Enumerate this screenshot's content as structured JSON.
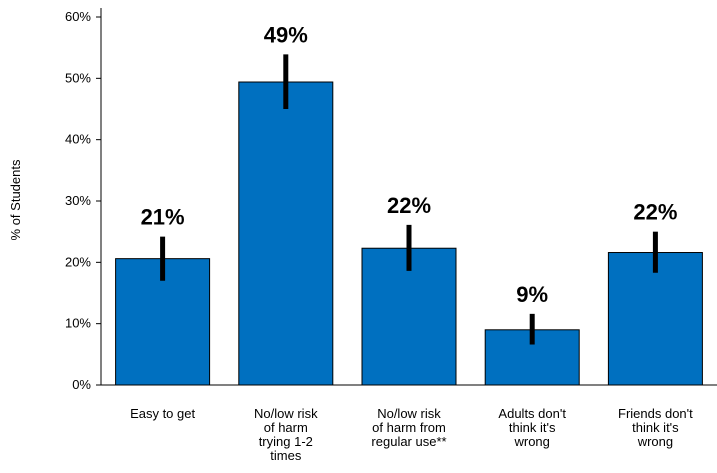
{
  "chart_data": {
    "type": "bar",
    "title": "",
    "xlabel": "",
    "ylabel": "% of Students",
    "ylim": [
      0,
      60
    ],
    "y_ticks": [
      "0%",
      "10%",
      "20%",
      "30%",
      "40%",
      "50%",
      "60%"
    ],
    "grid": false,
    "categories": [
      [
        "Easy to get"
      ],
      [
        "No/low risk",
        "of harm",
        "trying 1-2",
        "times"
      ],
      [
        "No/low risk",
        "of harm from",
        "regular use**"
      ],
      [
        "Adults don't",
        "think it's",
        "wrong"
      ],
      [
        "Friends don't",
        "think it's",
        "wrong"
      ]
    ],
    "values": [
      20.6,
      49.4,
      22.3,
      9.0,
      21.6
    ],
    "error_low": [
      17.0,
      45.0,
      18.6,
      6.6,
      18.3
    ],
    "error_high": [
      24.2,
      53.9,
      26.1,
      11.6,
      25.0
    ],
    "data_labels": [
      "21%",
      "49%",
      "22%",
      "9%",
      "22%"
    ],
    "colors": {
      "bar": "#0070C0",
      "bar_stroke": "#000000",
      "error_bar": "#000000"
    }
  }
}
